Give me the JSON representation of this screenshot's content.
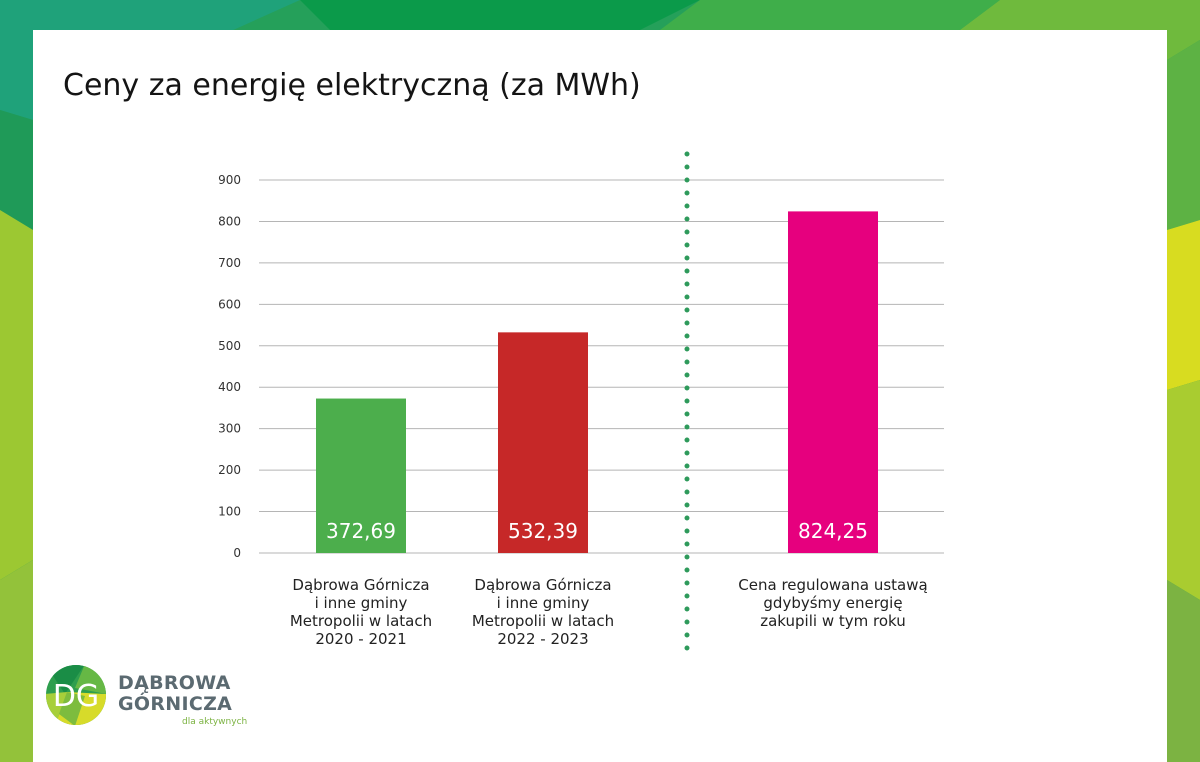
{
  "title": "Ceny za energię elektryczną (za MWh)",
  "chart_data": {
    "type": "bar",
    "categories": [
      [
        "Dąbrowa Górnicza",
        "i inne gminy",
        "Metropolii w latach",
        "2020 - 2021"
      ],
      [
        "Dąbrowa Górnicza",
        "i inne gminy",
        "Metropolii w latach",
        "2022 - 2023"
      ],
      [
        "Cena regulowana ustawą",
        "gdybyśmy energię",
        "zakupili w tym roku"
      ]
    ],
    "values": [
      372.69,
      532.39,
      824.25
    ],
    "value_labels": [
      "372,69",
      "532,39",
      "824,25"
    ],
    "colors": [
      "#4cae4c",
      "#c62828",
      "#e6007e"
    ],
    "yticks": [
      0,
      100,
      200,
      300,
      400,
      500,
      600,
      700,
      800,
      900
    ],
    "ylim": [
      0,
      900
    ],
    "grid": true,
    "separator": "dotted vertical line between bar 2 and bar 3",
    "separator_color": "#2e9a5b"
  },
  "logo": {
    "mark": "DG",
    "name_line1": "DĄBROWA",
    "name_line2": "GÓRNICZA",
    "tagline": "dla aktywnych"
  }
}
